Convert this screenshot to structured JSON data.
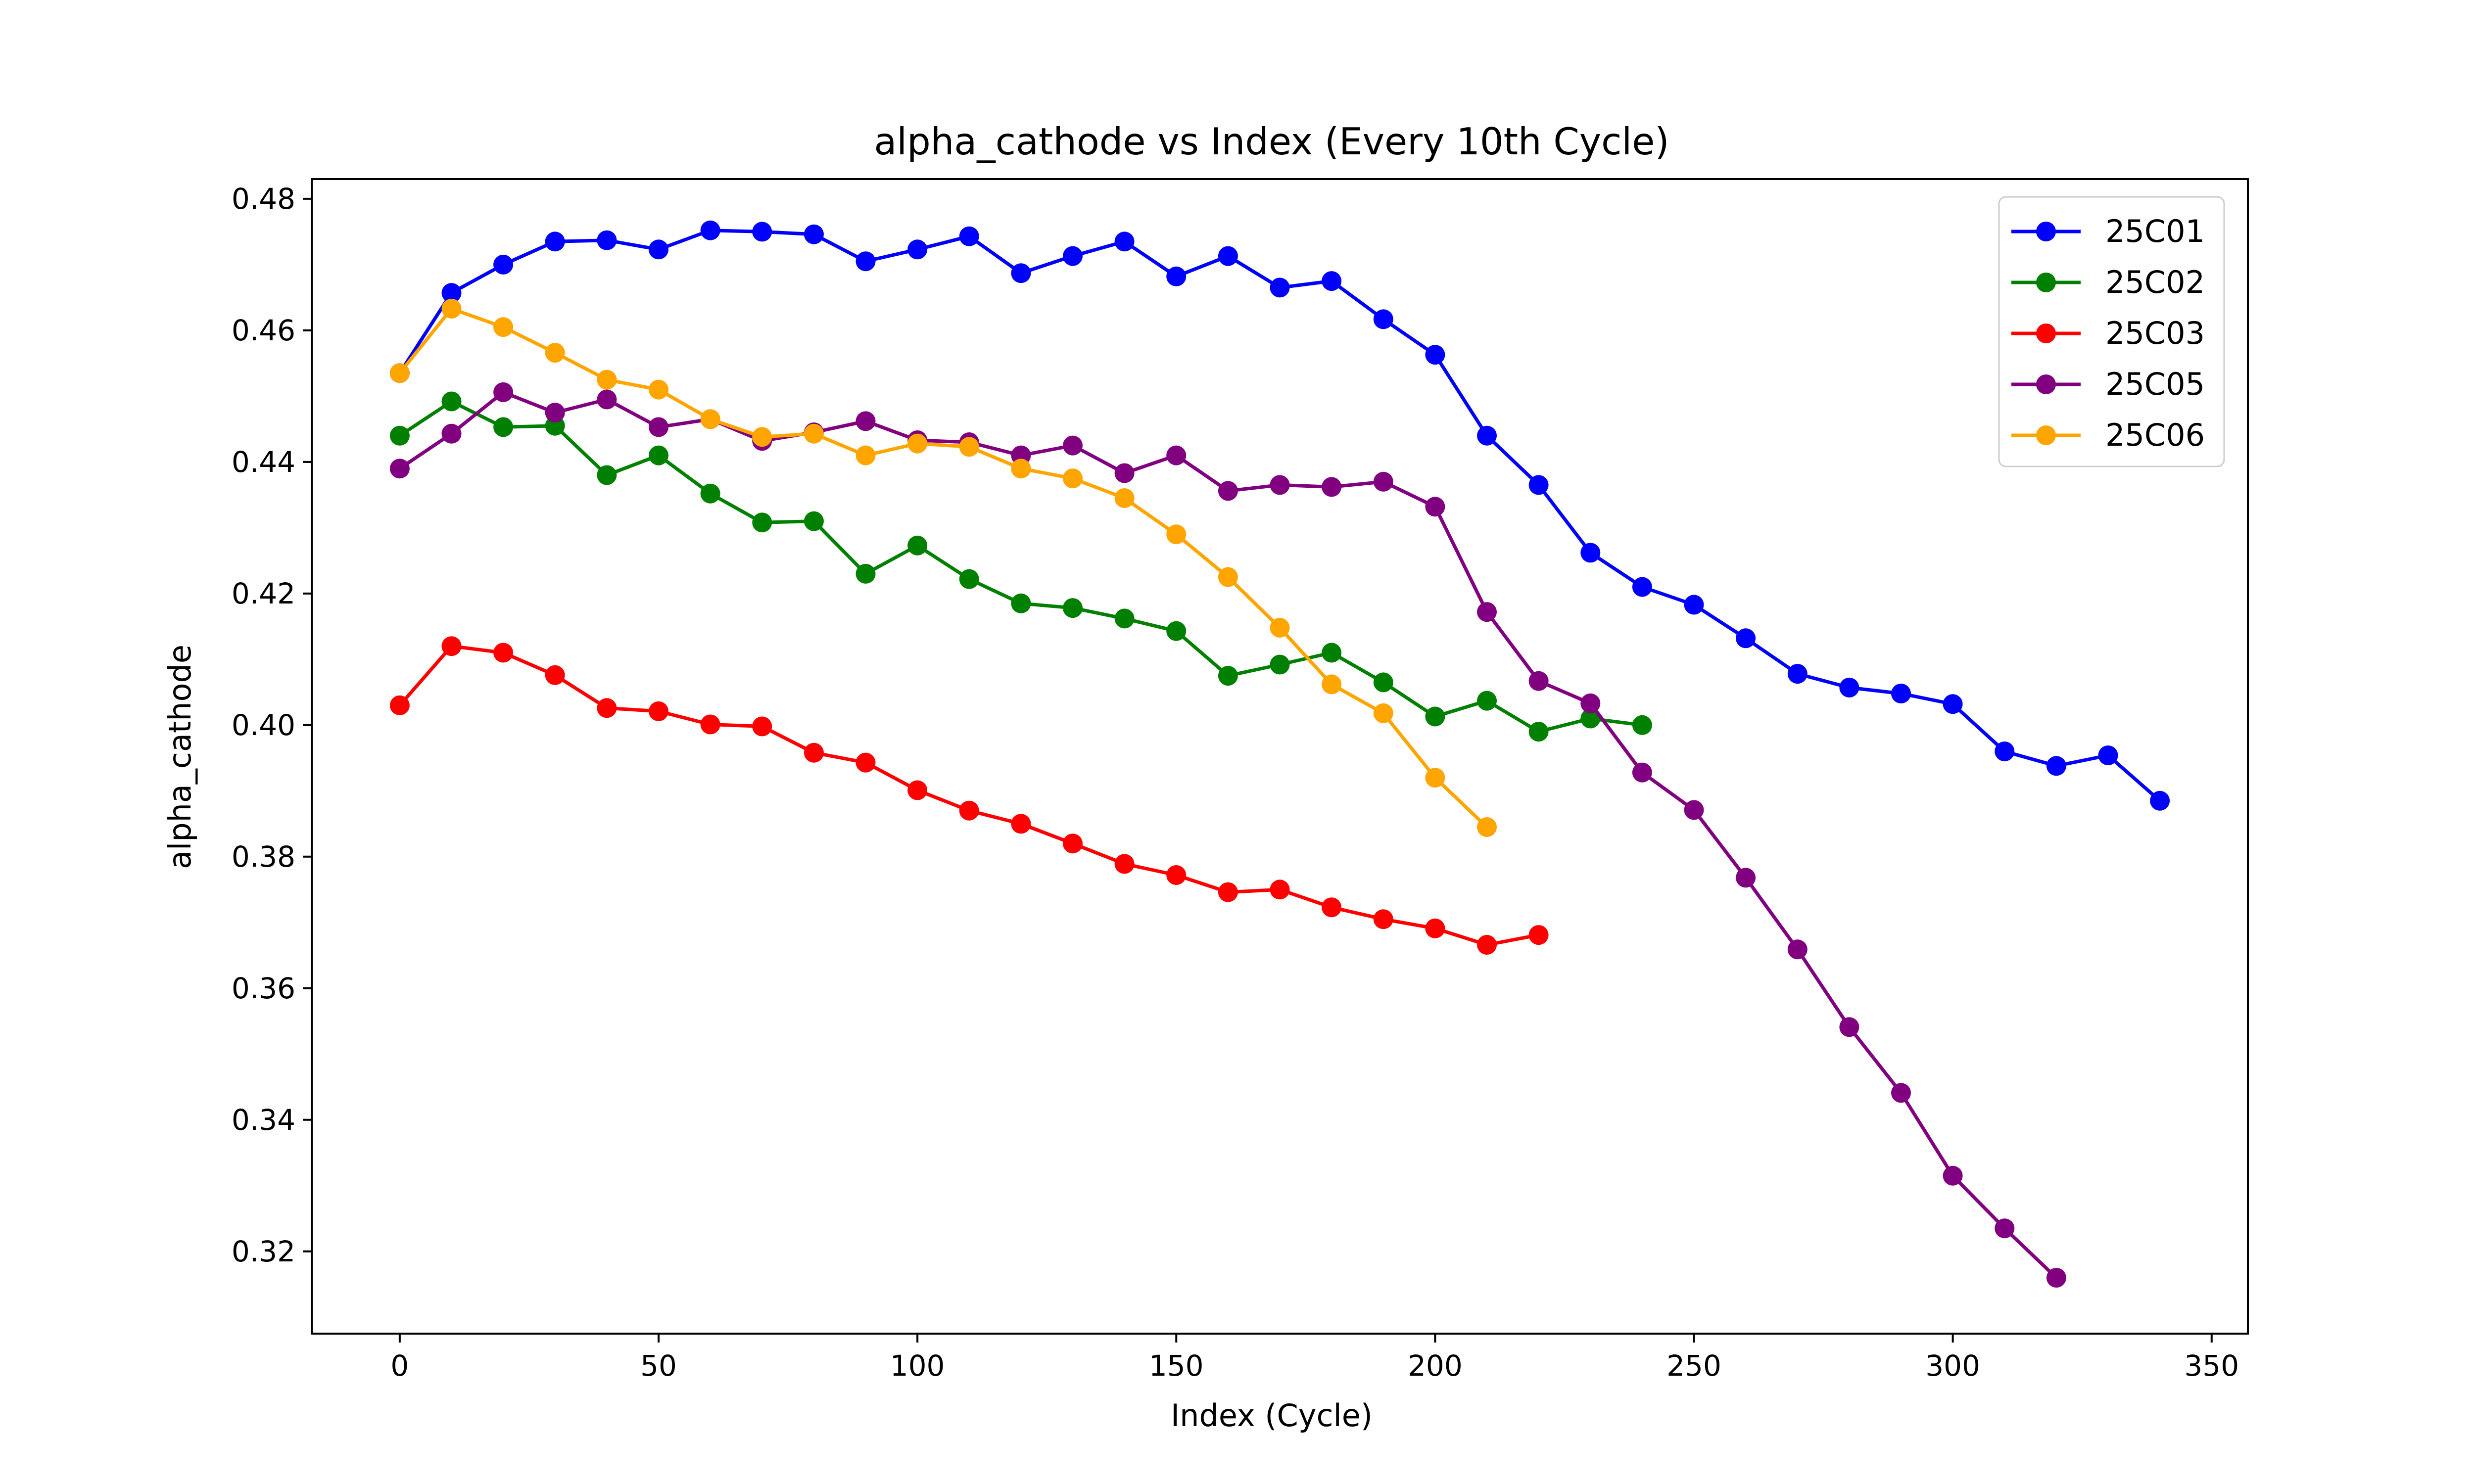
{
  "chart_data": {
    "type": "line",
    "title": "alpha_cathode vs Index (Every 10th Cycle)",
    "xlabel": "Index (Cycle)",
    "ylabel": "alpha_cathode",
    "xlim": [
      -17,
      357
    ],
    "ylim": [
      0.3075,
      0.483
    ],
    "xticks": [
      0,
      50,
      100,
      150,
      200,
      250,
      300,
      350
    ],
    "xtick_labels": [
      "0",
      "50",
      "100",
      "150",
      "200",
      "250",
      "300",
      "350"
    ],
    "yticks": [
      0.32,
      0.34,
      0.36,
      0.38,
      0.4,
      0.42,
      0.44,
      0.46,
      0.48
    ],
    "ytick_labels": [
      "0.32",
      "0.34",
      "0.36",
      "0.38",
      "0.40",
      "0.42",
      "0.44",
      "0.46",
      "0.48"
    ],
    "grid": false,
    "legend_position": "top-right",
    "series": [
      {
        "name": "25C01",
        "color": "#0000ff",
        "x": [
          0,
          10,
          20,
          30,
          40,
          50,
          60,
          70,
          80,
          90,
          100,
          110,
          120,
          130,
          140,
          150,
          160,
          170,
          180,
          190,
          200,
          210,
          220,
          230,
          240,
          250,
          260,
          270,
          280,
          290,
          300,
          310,
          320,
          330,
          340
        ],
        "values": [
          0.4535,
          0.4657,
          0.47,
          0.4735,
          0.4737,
          0.4723,
          0.4752,
          0.475,
          0.4746,
          0.4705,
          0.4723,
          0.4743,
          0.4687,
          0.4713,
          0.4735,
          0.4682,
          0.4713,
          0.4665,
          0.4675,
          0.4617,
          0.4563,
          0.444,
          0.4365,
          0.4262,
          0.421,
          0.4183,
          0.4132,
          0.4078,
          0.4057,
          0.4048,
          0.4032,
          0.396,
          0.3938,
          0.3954,
          0.3885
        ]
      },
      {
        "name": "25C02",
        "color": "#008000",
        "x": [
          0,
          10,
          20,
          30,
          40,
          50,
          60,
          70,
          80,
          90,
          100,
          110,
          120,
          130,
          140,
          150,
          160,
          170,
          180,
          190,
          200,
          210,
          220,
          230,
          240
        ],
        "values": [
          0.444,
          0.4492,
          0.4453,
          0.4455,
          0.438,
          0.441,
          0.4352,
          0.4308,
          0.431,
          0.423,
          0.4273,
          0.4222,
          0.4185,
          0.4178,
          0.4162,
          0.4143,
          0.4075,
          0.4092,
          0.411,
          0.4065,
          0.4013,
          0.4037,
          0.399,
          0.401,
          0.4
        ]
      },
      {
        "name": "25C03",
        "color": "#ff0000",
        "x": [
          0,
          10,
          20,
          30,
          40,
          50,
          60,
          70,
          80,
          90,
          100,
          110,
          120,
          130,
          140,
          150,
          160,
          170,
          180,
          190,
          200,
          210,
          220
        ],
        "values": [
          0.403,
          0.412,
          0.411,
          0.4076,
          0.4026,
          0.4021,
          0.4001,
          0.3998,
          0.3958,
          0.3943,
          0.3901,
          0.387,
          0.385,
          0.382,
          0.3789,
          0.3772,
          0.3746,
          0.375,
          0.3723,
          0.3705,
          0.3691,
          0.3666,
          0.3681
        ]
      },
      {
        "name": "25C05",
        "color": "#800080",
        "x": [
          0,
          10,
          20,
          30,
          40,
          50,
          60,
          70,
          80,
          90,
          100,
          110,
          120,
          130,
          140,
          150,
          160,
          170,
          180,
          190,
          200,
          210,
          220,
          230,
          240,
          250,
          260,
          270,
          280,
          290,
          300,
          310,
          320
        ],
        "values": [
          0.439,
          0.4443,
          0.4506,
          0.4475,
          0.4495,
          0.4453,
          0.4465,
          0.4432,
          0.4445,
          0.4462,
          0.4433,
          0.443,
          0.441,
          0.4425,
          0.4383,
          0.441,
          0.4356,
          0.4365,
          0.4362,
          0.437,
          0.4332,
          0.4172,
          0.4067,
          0.4033,
          0.3928,
          0.3871,
          0.3768,
          0.3659,
          0.3541,
          0.3441,
          0.3315,
          0.3235,
          0.316
        ]
      },
      {
        "name": "25C06",
        "color": "#ffa500",
        "x": [
          0,
          10,
          20,
          30,
          40,
          50,
          60,
          70,
          80,
          90,
          100,
          110,
          120,
          130,
          140,
          150,
          160,
          170,
          180,
          190,
          200,
          210
        ],
        "values": [
          0.4535,
          0.4633,
          0.4605,
          0.4566,
          0.4525,
          0.451,
          0.4465,
          0.4438,
          0.4443,
          0.441,
          0.4428,
          0.4423,
          0.439,
          0.4375,
          0.4345,
          0.429,
          0.4225,
          0.4148,
          0.4062,
          0.4018,
          0.392,
          0.3845
        ]
      }
    ]
  }
}
